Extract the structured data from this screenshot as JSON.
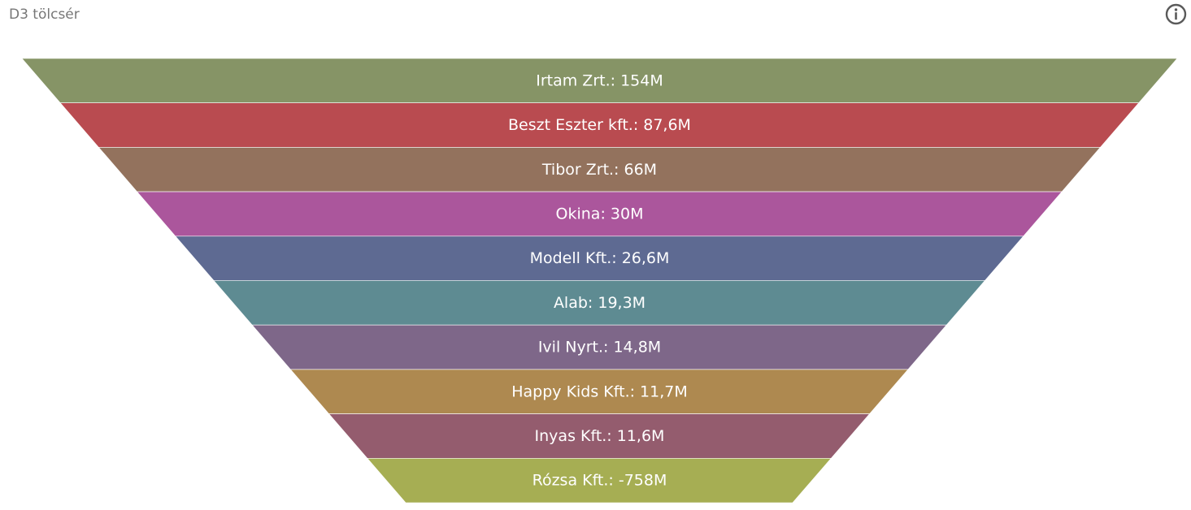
{
  "widget": {
    "title": "D3 tölcsér",
    "info_icon": "info-circle-icon"
  },
  "chart_data": {
    "type": "funnel",
    "items": [
      {
        "label": "Irtam Zrt.: 154M",
        "name": "Irtam Zrt.",
        "value": 154,
        "color": "#869466"
      },
      {
        "label": "Beszt Eszter kft.: 87,6M",
        "name": "Beszt Eszter kft.",
        "value": 87.6,
        "color": "#b94b50"
      },
      {
        "label": "Tibor Zrt.: 66M",
        "name": "Tibor Zrt.",
        "value": 66,
        "color": "#93725d"
      },
      {
        "label": "Okina: 30M",
        "name": "Okina",
        "value": 30,
        "color": "#ab569c"
      },
      {
        "label": "Modell Kft.: 26,6M",
        "name": "Modell Kft.",
        "value": 26.6,
        "color": "#5e6a92"
      },
      {
        "label": "Alab: 19,3M",
        "name": "Alab",
        "value": 19.3,
        "color": "#5e8b92"
      },
      {
        "label": "Ivil Nyrt.: 14,8M",
        "name": "Ivil Nyrt.",
        "value": 14.8,
        "color": "#7e6789"
      },
      {
        "label": "Happy Kids Kft.: 11,7M",
        "name": "Happy Kids Kft.",
        "value": 11.7,
        "color": "#ae8950"
      },
      {
        "label": "Inyas Kft.: 11,6M",
        "name": "Inyas Kft.",
        "value": 11.6,
        "color": "#945c6e"
      },
      {
        "label": "Rózsa Kft.: -758M",
        "name": "Rózsa Kft.",
        "value": -758,
        "color": "#a6ae53"
      }
    ]
  }
}
